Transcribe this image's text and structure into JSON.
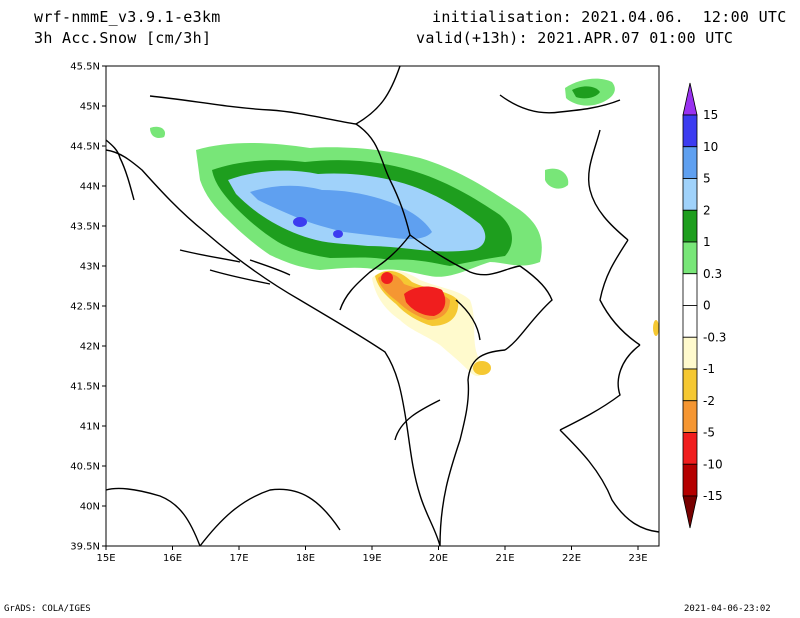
{
  "header": {
    "model": "wrf-nmmE_v3.9.1-e3km",
    "field": "3h Acc.Snow [cm/3h]",
    "init": "initialisation: 2021.04.06.  12:00 UTC",
    "valid": "valid(+13h): 2021.APR.07 01:00 UTC"
  },
  "footer": {
    "left": "GrADS: COLA/IGES",
    "right": "2021-04-06-23:02"
  },
  "axes": {
    "lat_ticks": [
      "45.5N",
      "45N",
      "44.5N",
      "44N",
      "43.5N",
      "43N",
      "42.5N",
      "42N",
      "41.5N",
      "41N",
      "40.5N",
      "40N",
      "39.5N"
    ],
    "lon_ticks": [
      "15E",
      "16E",
      "17E",
      "18E",
      "19E",
      "20E",
      "21E",
      "22E",
      "23E"
    ]
  },
  "colorbar": {
    "labels": [
      "15",
      "10",
      "5",
      "2",
      "1",
      "0.3",
      "0",
      "-0.3",
      "-1",
      "-2",
      "-5",
      "-10",
      "-15"
    ],
    "colors": [
      "#3c3cf0",
      "#5fa0f0",
      "#a0d2fa",
      "#1e9e1e",
      "#78e678",
      "#ffffff",
      "#ffffff",
      "#fffacd",
      "#f5c832",
      "#f59632",
      "#f01e1e",
      "#b40000"
    ],
    "top_arrow": "#9932f0",
    "bottom_arrow": "#780000"
  },
  "map": {
    "colors": {
      "light_green": "#78e678",
      "green": "#1e9e1e",
      "light_blue": "#a0d2fa",
      "blue": "#5fa0f0",
      "dark_blue": "#3c3cf0",
      "cream": "#fffacd",
      "yellow": "#f5c832",
      "orange": "#f59632",
      "red": "#f01e1e"
    }
  }
}
